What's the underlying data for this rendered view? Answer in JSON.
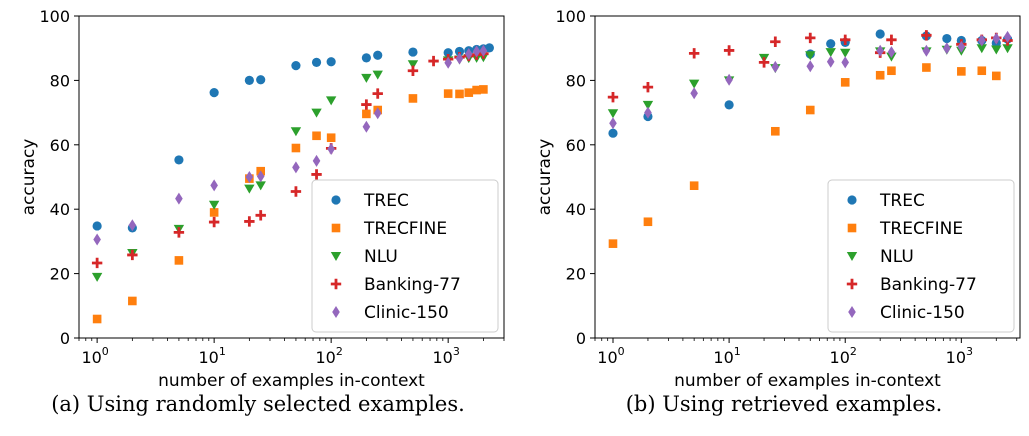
{
  "colors": {
    "TREC": "#1f77b4",
    "TRECFINE": "#ff7f0e",
    "NLU": "#2ca02c",
    "Banking-77": "#d62728",
    "Clinic-150": "#9467bd"
  },
  "chart_data": [
    {
      "type": "scatter",
      "caption": "(a) Using randomly selected examples.",
      "xlabel": "number of examples in-context",
      "ylabel": "accuracy",
      "xscale": "log",
      "xlim": [
        0.7,
        3000
      ],
      "ylim": [
        0,
        100
      ],
      "yticks": [
        0,
        20,
        40,
        60,
        80,
        100
      ],
      "xticks": [
        {
          "value": 1,
          "base": "10",
          "exp": "0"
        },
        {
          "value": 10,
          "base": "10",
          "exp": "1"
        },
        {
          "value": 100,
          "base": "10",
          "exp": "2"
        },
        {
          "value": 1000,
          "base": "10",
          "exp": "3"
        }
      ],
      "grid": false,
      "legend_position": "lower-right",
      "series": [
        {
          "name": "TREC",
          "marker": "circle",
          "points": [
            [
              1,
              34.8
            ],
            [
              2,
              34.2
            ],
            [
              5,
              55.3
            ],
            [
              10,
              76.2
            ],
            [
              20,
              80
            ],
            [
              25,
              80.2
            ],
            [
              50,
              84.6
            ],
            [
              75,
              85.6
            ],
            [
              100,
              85.8
            ],
            [
              200,
              87
            ],
            [
              250,
              87.8
            ],
            [
              500,
              88.8
            ],
            [
              1000,
              88.6
            ],
            [
              1250,
              89
            ],
            [
              1500,
              89.2
            ],
            [
              1750,
              89.6
            ],
            [
              2000,
              89.8
            ],
            [
              2250,
              90.1
            ]
          ]
        },
        {
          "name": "TRECFINE",
          "marker": "square",
          "points": [
            [
              1,
              5.9
            ],
            [
              2,
              11.5
            ],
            [
              5,
              24.1
            ],
            [
              10,
              39
            ],
            [
              20,
              49.5
            ],
            [
              25,
              51.8
            ],
            [
              50,
              59
            ],
            [
              75,
              62.8
            ],
            [
              100,
              62.2
            ],
            [
              200,
              69.6
            ],
            [
              250,
              70.8
            ],
            [
              500,
              74.4
            ],
            [
              1000,
              75.9
            ],
            [
              1250,
              75.8
            ],
            [
              1500,
              76.2
            ],
            [
              1750,
              77
            ],
            [
              2000,
              77.2
            ]
          ]
        },
        {
          "name": "NLU",
          "marker": "triangle-down",
          "points": [
            [
              1,
              19
            ],
            [
              2,
              26.4
            ],
            [
              5,
              33.9
            ],
            [
              10,
              41.4
            ],
            [
              20,
              46.4
            ],
            [
              25,
              47.4
            ],
            [
              50,
              64.2
            ],
            [
              75,
              70
            ],
            [
              100,
              73.8
            ],
            [
              200,
              80.8
            ],
            [
              250,
              81.8
            ],
            [
              500,
              85
            ],
            [
              1000,
              86.2
            ],
            [
              1250,
              86.5
            ],
            [
              1500,
              86.9
            ],
            [
              1750,
              87
            ],
            [
              2000,
              87.2
            ]
          ]
        },
        {
          "name": "Banking-77",
          "marker": "plus",
          "points": [
            [
              1,
              23.3
            ],
            [
              2,
              25.8
            ],
            [
              5,
              32.8
            ],
            [
              10,
              36
            ],
            [
              20,
              36.2
            ],
            [
              25,
              38.1
            ],
            [
              50,
              45.5
            ],
            [
              75,
              50.8
            ],
            [
              100,
              58.9
            ],
            [
              200,
              72.5
            ],
            [
              250,
              75.9
            ],
            [
              500,
              83
            ],
            [
              750,
              86
            ],
            [
              1000,
              86.6
            ],
            [
              1250,
              87.2
            ],
            [
              1500,
              87.6
            ],
            [
              1750,
              88
            ],
            [
              2000,
              88.3
            ]
          ]
        },
        {
          "name": "Clinic-150",
          "marker": "diamond",
          "points": [
            [
              1,
              30.6
            ],
            [
              2,
              35
            ],
            [
              5,
              43.3
            ],
            [
              10,
              47.4
            ],
            [
              20,
              50
            ],
            [
              25,
              50.2
            ],
            [
              50,
              53
            ],
            [
              75,
              55
            ],
            [
              100,
              58.7
            ],
            [
              200,
              65.6
            ],
            [
              250,
              69.8
            ],
            [
              1000,
              85.5
            ],
            [
              1250,
              86.8
            ],
            [
              1500,
              88.2
            ],
            [
              1750,
              89
            ],
            [
              2000,
              89.2
            ]
          ]
        }
      ]
    },
    {
      "type": "scatter",
      "caption": "(b) Using retrieved examples.",
      "xlabel": "number of examples in-context",
      "ylabel": "accuracy",
      "xscale": "log",
      "xlim": [
        0.7,
        3200
      ],
      "ylim": [
        0,
        100
      ],
      "yticks": [
        0,
        20,
        40,
        60,
        80,
        100
      ],
      "xticks": [
        {
          "value": 1,
          "base": "10",
          "exp": "0"
        },
        {
          "value": 10,
          "base": "10",
          "exp": "1"
        },
        {
          "value": 100,
          "base": "10",
          "exp": "2"
        },
        {
          "value": 1000,
          "base": "10",
          "exp": "3"
        }
      ],
      "grid": false,
      "legend_position": "lower-right",
      "series": [
        {
          "name": "TREC",
          "marker": "circle",
          "points": [
            [
              1,
              63.6
            ],
            [
              2,
              68.8
            ],
            [
              10,
              72.4
            ],
            [
              50,
              88.2
            ],
            [
              75,
              91.4
            ],
            [
              100,
              91.8
            ],
            [
              200,
              94.4
            ],
            [
              500,
              93.8
            ],
            [
              750,
              93
            ],
            [
              1000,
              92.4
            ],
            [
              1500,
              92.4
            ],
            [
              2000,
              91.6
            ],
            [
              2500,
              92.8
            ]
          ]
        },
        {
          "name": "TRECFINE",
          "marker": "square",
          "points": [
            [
              1,
              29.3
            ],
            [
              2,
              36.1
            ],
            [
              5,
              47.3
            ],
            [
              25,
              64.2
            ],
            [
              50,
              70.8
            ],
            [
              100,
              79.4
            ],
            [
              200,
              81.6
            ],
            [
              250,
              83
            ],
            [
              500,
              84
            ],
            [
              1000,
              82.8
            ],
            [
              1500,
              83
            ],
            [
              2000,
              81.4
            ]
          ]
        },
        {
          "name": "NLU",
          "marker": "triangle-down",
          "points": [
            [
              1,
              69.8
            ],
            [
              2,
              72.4
            ],
            [
              5,
              79
            ],
            [
              10,
              80
            ],
            [
              20,
              87
            ],
            [
              25,
              83.8
            ],
            [
              50,
              87.8
            ],
            [
              75,
              88.8
            ],
            [
              100,
              88.6
            ],
            [
              200,
              89
            ],
            [
              250,
              87.4
            ],
            [
              500,
              89
            ],
            [
              750,
              89.5
            ],
            [
              1000,
              89.2
            ],
            [
              1500,
              90
            ],
            [
              2000,
              89.6
            ],
            [
              2500,
              90
            ]
          ]
        },
        {
          "name": "Banking-77",
          "marker": "plus",
          "points": [
            [
              1,
              74.8
            ],
            [
              2,
              77.9
            ],
            [
              5,
              88.4
            ],
            [
              10,
              89.3
            ],
            [
              20,
              85.6
            ],
            [
              25,
              92
            ],
            [
              50,
              93.2
            ],
            [
              100,
              92.6
            ],
            [
              200,
              88.6
            ],
            [
              250,
              92.6
            ],
            [
              500,
              94
            ],
            [
              1000,
              91.2
            ],
            [
              1500,
              92.6
            ],
            [
              2000,
              93.2
            ],
            [
              2500,
              92.4
            ]
          ]
        },
        {
          "name": "Clinic-150",
          "marker": "diamond",
          "points": [
            [
              1,
              66.7
            ],
            [
              2,
              70
            ],
            [
              5,
              76
            ],
            [
              10,
              80.2
            ],
            [
              25,
              84.2
            ],
            [
              50,
              84.4
            ],
            [
              75,
              85.8
            ],
            [
              100,
              85.6
            ],
            [
              200,
              89.2
            ],
            [
              250,
              88.8
            ],
            [
              500,
              89.2
            ],
            [
              750,
              90
            ],
            [
              1000,
              90.4
            ],
            [
              1500,
              92.4
            ],
            [
              2000,
              93
            ],
            [
              2500,
              93.5
            ]
          ]
        }
      ]
    }
  ]
}
